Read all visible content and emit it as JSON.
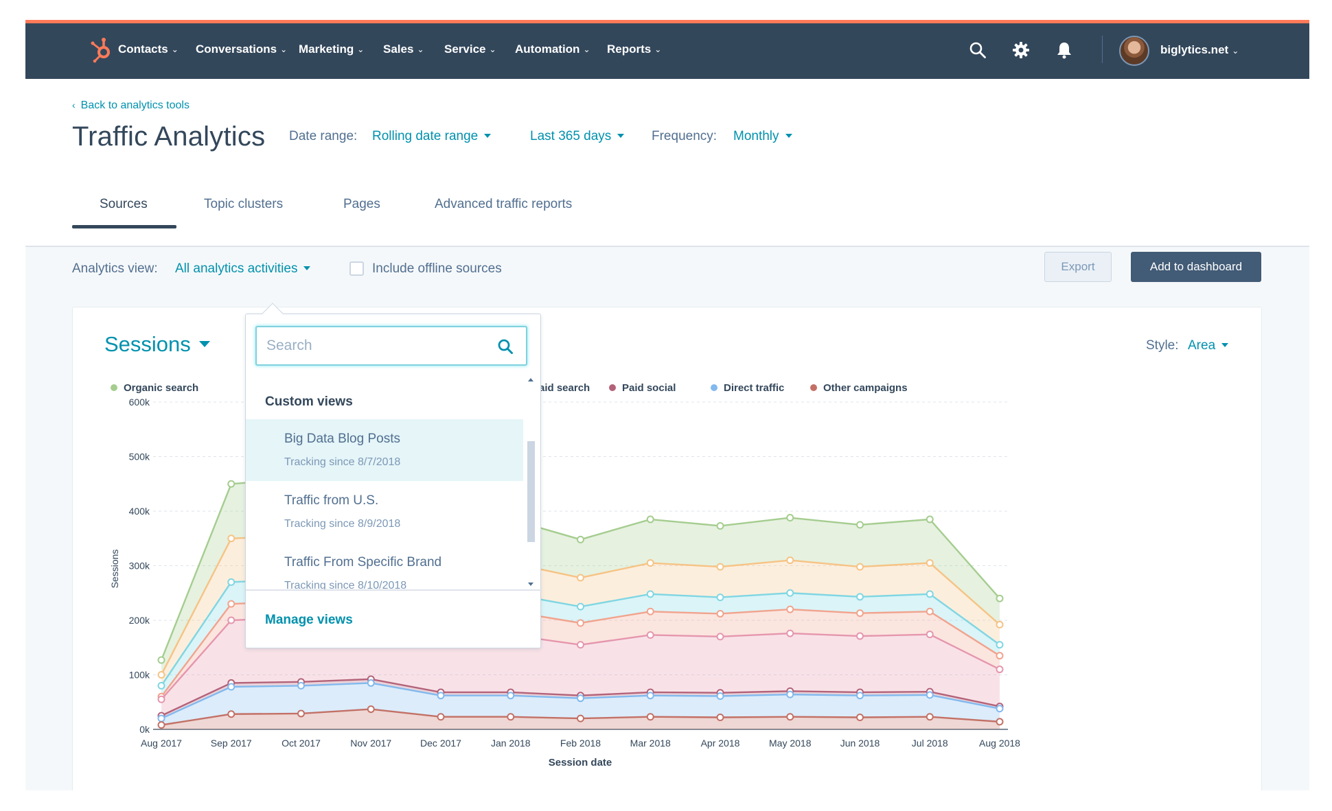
{
  "topnav": {
    "logo_icon": "hubspot-sprocket-icon",
    "items": [
      {
        "label": "Contacts"
      },
      {
        "label": "Conversations"
      },
      {
        "label": "Marketing"
      },
      {
        "label": "Sales"
      },
      {
        "label": "Service"
      },
      {
        "label": "Automation"
      },
      {
        "label": "Reports"
      }
    ],
    "icons": [
      "search-icon",
      "gear-icon",
      "bell-icon"
    ],
    "account": "biglytics.net"
  },
  "header": {
    "back_link": "Back to analytics tools",
    "title": "Traffic Analytics",
    "date_range_label": "Date range:",
    "date_range_value": "Rolling date range",
    "period_value": "Last 365 days",
    "frequency_label": "Frequency:",
    "frequency_value": "Monthly",
    "tabs": [
      {
        "label": "Sources",
        "active": true
      },
      {
        "label": "Topic clusters"
      },
      {
        "label": "Pages"
      },
      {
        "label": "Advanced traffic reports"
      }
    ]
  },
  "filters": {
    "analytics_view_label": "Analytics view:",
    "analytics_view_value": "All analytics activities",
    "include_offline_label": "Include offline sources",
    "include_offline_checked": false,
    "export_label": "Export",
    "add_dashboard_label": "Add to dashboard"
  },
  "card": {
    "metric": "Sessions",
    "style_label": "Style:",
    "style_value": "Area"
  },
  "dropdown": {
    "search_placeholder": "Search",
    "group_header": "Custom views",
    "items": [
      {
        "name": "Big Data Blog Posts",
        "sub": "Tracking since 8/7/2018",
        "highlighted": true
      },
      {
        "name": "Traffic from U.S.",
        "sub": "Tracking since 8/9/2018"
      },
      {
        "name": "Traffic From Specific Brand",
        "sub": "Tracking since 8/10/2018"
      }
    ],
    "footer_link": "Manage views"
  },
  "colors": {
    "nav_bg": "#33475b",
    "accent": "#ff7a59",
    "link": "#0091ae",
    "button_dark": "#425b76"
  },
  "chart_data": {
    "type": "area",
    "stacked": true,
    "xlabel": "Session date",
    "ylabel": "Sessions",
    "ylim": [
      0,
      600000
    ],
    "yticks": [
      0,
      100000,
      200000,
      300000,
      400000,
      500000,
      600000
    ],
    "ytick_labels": [
      "0k",
      "100k",
      "200k",
      "300k",
      "400k",
      "500k",
      "600k"
    ],
    "grid": true,
    "legend_position": "top",
    "categories": [
      "Aug 2017",
      "Sep 2017",
      "Oct 2017",
      "Nov 2017",
      "Dec 2017",
      "Jan 2018",
      "Feb 2018",
      "Mar 2018",
      "Apr 2018",
      "May 2018",
      "Jun 2018",
      "Jul 2018",
      "Aug 2018"
    ],
    "visible_legend": [
      "Organic search",
      "Paid search",
      "Paid social",
      "Direct traffic",
      "Other campaigns"
    ],
    "series_colors": [
      "#a5cd8f",
      "#f6c384",
      "#7fd6e2",
      "#f1a38d",
      "#e596ad",
      "#b36279",
      "#82b9ee",
      "#c37066"
    ],
    "cumulative_series": [
      {
        "name": "Organic search",
        "values": [
          127000,
          450000,
          460000,
          470000,
          385000,
          385000,
          348000,
          385000,
          373000,
          388000,
          375000,
          385000,
          240000
        ]
      },
      {
        "values": [
          100000,
          350000,
          355000,
          360000,
          305000,
          305000,
          278000,
          305000,
          298000,
          310000,
          298000,
          305000,
          192000
        ]
      },
      {
        "values": [
          80000,
          270000,
          275000,
          280000,
          248000,
          248000,
          225000,
          248000,
          242000,
          250000,
          243000,
          248000,
          155000
        ]
      },
      {
        "name": "Paid search",
        "values": [
          60000,
          230000,
          235000,
          238000,
          215000,
          216000,
          195000,
          216000,
          212000,
          220000,
          213000,
          216000,
          135000
        ]
      },
      {
        "values": [
          55000,
          200000,
          205000,
          208000,
          172000,
          173000,
          155000,
          173000,
          170000,
          176000,
          171000,
          174000,
          110000
        ]
      },
      {
        "name": "Paid social",
        "values": [
          25000,
          85000,
          87000,
          92000,
          68000,
          68000,
          62000,
          68000,
          67000,
          70000,
          68000,
          69000,
          42000
        ]
      },
      {
        "name": "Direct traffic",
        "values": [
          20000,
          78000,
          80000,
          85000,
          62000,
          62000,
          57000,
          62000,
          61000,
          64000,
          62000,
          63000,
          38000
        ]
      },
      {
        "name": "Other campaigns",
        "values": [
          8000,
          28000,
          29000,
          37000,
          23000,
          23000,
          20000,
          23000,
          22000,
          23000,
          22000,
          23000,
          14000
        ]
      }
    ]
  }
}
